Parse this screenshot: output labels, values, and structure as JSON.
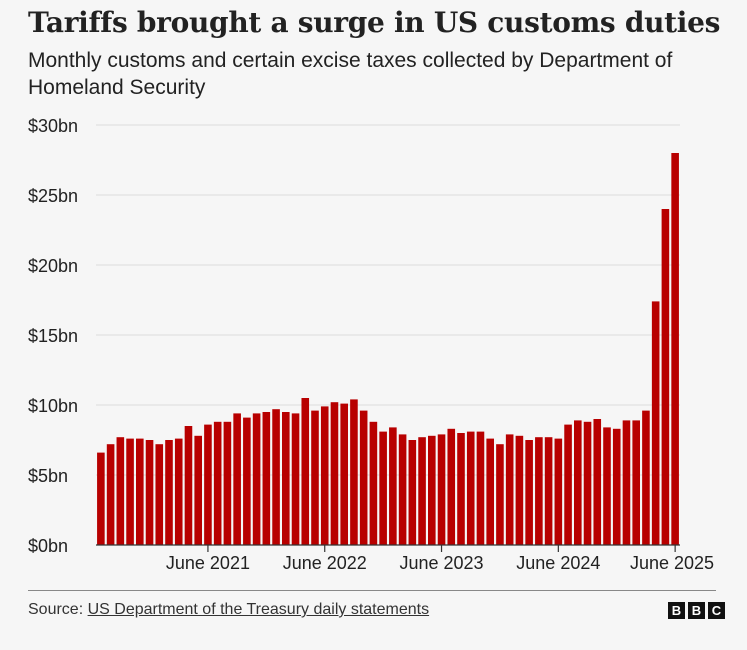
{
  "chart_data": {
    "type": "bar",
    "title": "Tariffs brought a surge in US customs duties",
    "subtitle": "Monthly customs and certain excise taxes collected by Department of Homeland Security",
    "xlabel": "",
    "ylabel": "",
    "ylim": [
      0,
      30
    ],
    "yticks": [
      {
        "value": 0,
        "label": "$0bn"
      },
      {
        "value": 5,
        "label": "$5bn"
      },
      {
        "value": 10,
        "label": "$10bn"
      },
      {
        "value": 15,
        "label": "$15bn"
      },
      {
        "value": 20,
        "label": "$20bn"
      },
      {
        "value": 25,
        "label": "$25bn"
      },
      {
        "value": 30,
        "label": "$30bn"
      }
    ],
    "xticks": [
      {
        "index": 11,
        "label": "June 2021"
      },
      {
        "index": 23,
        "label": "June 2022"
      },
      {
        "index": 35,
        "label": "June 2023"
      },
      {
        "index": 47,
        "label": "June 2024"
      },
      {
        "index": 59,
        "label": "June 2025"
      }
    ],
    "categories": [
      "Jul 2020",
      "Aug 2020",
      "Sep 2020",
      "Oct 2020",
      "Nov 2020",
      "Dec 2020",
      "Jan 2021",
      "Feb 2021",
      "Mar 2021",
      "Apr 2021",
      "May 2021",
      "Jun 2021",
      "Jul 2021",
      "Aug 2021",
      "Sep 2021",
      "Oct 2021",
      "Nov 2021",
      "Dec 2021",
      "Jan 2022",
      "Feb 2022",
      "Mar 2022",
      "Apr 2022",
      "May 2022",
      "Jun 2022",
      "Jul 2022",
      "Aug 2022",
      "Sep 2022",
      "Oct 2022",
      "Nov 2022",
      "Dec 2022",
      "Jan 2023",
      "Feb 2023",
      "Mar 2023",
      "Apr 2023",
      "May 2023",
      "Jun 2023",
      "Jul 2023",
      "Aug 2023",
      "Sep 2023",
      "Oct 2023",
      "Nov 2023",
      "Dec 2023",
      "Jan 2024",
      "Feb 2024",
      "Mar 2024",
      "Apr 2024",
      "May 2024",
      "Jun 2024",
      "Jul 2024",
      "Aug 2024",
      "Sep 2024",
      "Oct 2024",
      "Nov 2024",
      "Dec 2024",
      "Jan 2025",
      "Feb 2025",
      "Mar 2025",
      "Apr 2025",
      "May 2025",
      "Jun 2025"
    ],
    "series": [
      {
        "name": "Customs duties",
        "color": "#b80000",
        "values": [
          6.6,
          7.2,
          7.7,
          7.6,
          7.6,
          7.5,
          7.2,
          7.5,
          7.6,
          8.5,
          7.8,
          8.6,
          8.8,
          8.8,
          9.4,
          9.1,
          9.4,
          9.5,
          9.7,
          9.5,
          9.4,
          10.5,
          9.6,
          9.9,
          10.2,
          10.1,
          10.4,
          9.6,
          8.8,
          8.1,
          8.4,
          7.9,
          7.5,
          7.7,
          7.8,
          7.9,
          8.3,
          8.0,
          8.1,
          8.1,
          7.6,
          7.2,
          7.9,
          7.8,
          7.5,
          7.7,
          7.7,
          7.6,
          8.6,
          8.9,
          8.8,
          9.0,
          8.4,
          8.3,
          8.9,
          8.9,
          9.6,
          17.4,
          24.0,
          28.0
        ]
      }
    ]
  },
  "footer": {
    "source_prefix": "Source: ",
    "source_link": "US Department of the Treasury daily statements",
    "logo_letters": [
      "B",
      "B",
      "C"
    ]
  },
  "colors": {
    "bar": "#b80000",
    "grid": "#dcdcdc",
    "background": "#f6f6f6"
  }
}
